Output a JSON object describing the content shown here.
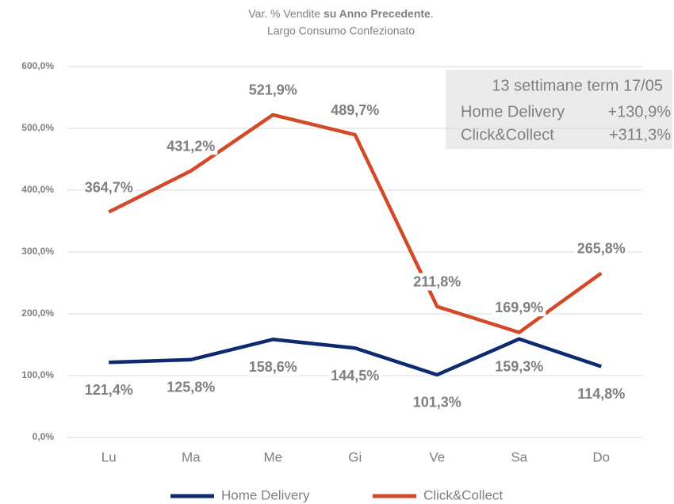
{
  "chart_data": {
    "type": "line",
    "title_parts": [
      {
        "text": "Var. % Vendite "
      },
      {
        "text": "su Anno Precedente",
        "bold": true
      },
      {
        "text": "."
      }
    ],
    "subtitle": "Largo Consumo Confezionato",
    "categories": [
      "Lu",
      "Ma",
      "Me",
      "Gi",
      "Ve",
      "Sa",
      "Do"
    ],
    "series": [
      {
        "name": "Home Delivery",
        "color": "#0d2a6e",
        "label_side": "below",
        "values": [
          121.4,
          125.8,
          158.6,
          144.5,
          101.3,
          159.3,
          114.8
        ],
        "value_labels": [
          "121,4%",
          "125,8%",
          "158,6%",
          "144,5%",
          "101,3%",
          "159,3%",
          "114,8%"
        ]
      },
      {
        "name": "Click&Collect",
        "color": "#d24a2a",
        "label_side": "above",
        "values": [
          364.7,
          431.2,
          521.9,
          489.7,
          211.8,
          169.9,
          265.8
        ],
        "value_labels": [
          "364,7%",
          "431,2%",
          "521,9%",
          "489,7%",
          "211,8%",
          "169,9%",
          "265,8%"
        ]
      }
    ],
    "ylim": [
      0,
      600
    ],
    "yticks": [
      {
        "value": 0,
        "label": "0,0%"
      },
      {
        "value": 100,
        "label": "100,0%"
      },
      {
        "value": 200,
        "label": "200,0%"
      },
      {
        "value": 300,
        "label": "300,0%"
      },
      {
        "value": 400,
        "label": "400,0%"
      },
      {
        "value": 500,
        "label": "500,0%"
      },
      {
        "value": 600,
        "label": "600,0%"
      }
    ],
    "grid": true,
    "legend": "bottom",
    "annotation": {
      "title": "13 settimane term 17/05",
      "rows": [
        [
          "Home Delivery",
          "+130,9%"
        ],
        [
          "Click&Collect",
          "+311,3%"
        ]
      ]
    }
  }
}
